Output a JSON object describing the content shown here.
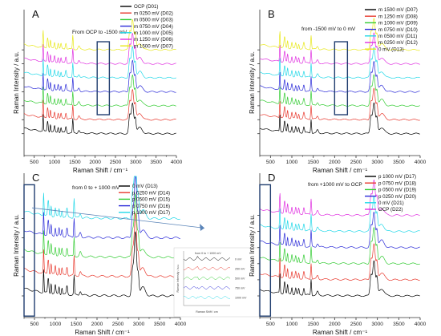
{
  "chart_data": [
    {
      "type": "line",
      "panel": "A",
      "annotation": "From OCP to -1500 mV",
      "xlabel": "Raman Shift / cm⁻¹",
      "ylabel": "Raman Intensity / a.u.",
      "xlim": [
        250,
        4000
      ],
      "xticks": [
        500,
        1000,
        1500,
        2000,
        2500,
        3000,
        3500,
        4000
      ],
      "series": [
        {
          "name": "OCP (D01)",
          "color": "#000000"
        },
        {
          "name": "m 0250 mV (D02)",
          "color": "#e8392e"
        },
        {
          "name": "m 0500 mV (D03)",
          "color": "#33cc33"
        },
        {
          "name": "m 0750 mV (D04)",
          "color": "#2a2ad8"
        },
        {
          "name": "m 1000 mV (D05)",
          "color": "#22d8e8"
        },
        {
          "name": "m 1250 mV (D06)",
          "color": "#e030e0"
        },
        {
          "name": "m 1500 mV (D07)",
          "color": "#e8e81a"
        }
      ],
      "highlight_range": [
        2050,
        2350
      ]
    },
    {
      "type": "line",
      "panel": "B",
      "annotation": "from -1500 mV to 0 mV",
      "xlabel": "Raman Shift / cm⁻¹",
      "ylabel": "Raman Intensity / a.u.",
      "xlim": [
        250,
        4000
      ],
      "xticks": [
        500,
        1000,
        1500,
        2000,
        2500,
        3000,
        3500,
        4000
      ],
      "series": [
        {
          "name": "m 1500 mV (D07)",
          "color": "#000000"
        },
        {
          "name": "m 1250 mV (D08)",
          "color": "#e8392e"
        },
        {
          "name": "m 1000 mV (D09)",
          "color": "#33cc33"
        },
        {
          "name": "m 0750 mV (D10)",
          "color": "#2a2ad8"
        },
        {
          "name": "m 0500 mV (D11)",
          "color": "#22d8e8"
        },
        {
          "name": "m 0250 mV (D12)",
          "color": "#e030e0"
        },
        {
          "name": "0 mV (D13)",
          "color": "#e8e81a"
        }
      ],
      "highlight_range": [
        2000,
        2300
      ]
    },
    {
      "type": "line",
      "panel": "C",
      "annotation": "from 0 to + 1000 mV",
      "xlabel": "Raman Shift / cm⁻¹",
      "ylabel": "Raman Intensity / a.u.",
      "xlim": [
        250,
        4000
      ],
      "xticks": [
        500,
        1000,
        1500,
        2000,
        2500,
        3000,
        3500,
        4000
      ],
      "series": [
        {
          "name": "0 mV (D13)",
          "color": "#000000"
        },
        {
          "name": "p 0250 mV (D14)",
          "color": "#e8392e"
        },
        {
          "name": "p 0500 mV (D15)",
          "color": "#33cc33"
        },
        {
          "name": "p 0750 mV (D16)",
          "color": "#2a2ad8"
        },
        {
          "name": "p 1000 mV (D17)",
          "color": "#22d8e8"
        }
      ],
      "highlight_range": [
        250,
        500
      ],
      "inset": {
        "title": "from 0 to + 1000 mV",
        "labels": [
          "0 mV",
          "250 mV",
          "500 mV",
          "750 mV",
          "1000 mV"
        ],
        "xlabel": "Raman Shift / cm",
        "ylabel": "Raman Intensity / a.u."
      }
    },
    {
      "type": "line",
      "panel": "D",
      "annotation": "from +1000 mV to OCP",
      "xlabel": "Raman Shift / cm⁻¹",
      "ylabel": "Raman Intensity / a.u.",
      "xlim": [
        250,
        4000
      ],
      "xticks": [
        500,
        1000,
        1500,
        2000,
        2500,
        3000,
        3500,
        4000
      ],
      "series": [
        {
          "name": "p 1000 mV (D17)",
          "color": "#000000"
        },
        {
          "name": "p 0750 mV (D18)",
          "color": "#e8392e"
        },
        {
          "name": "p 0500 mV (D19)",
          "color": "#33cc33"
        },
        {
          "name": "p 0250 mV (D20)",
          "color": "#2a2ad8"
        },
        {
          "name": "0 mV (D21)",
          "color": "#22d8e8"
        },
        {
          "name": "OCP (D22)",
          "color": "#e030e0"
        }
      ],
      "highlight_range": [
        250,
        500
      ]
    }
  ]
}
